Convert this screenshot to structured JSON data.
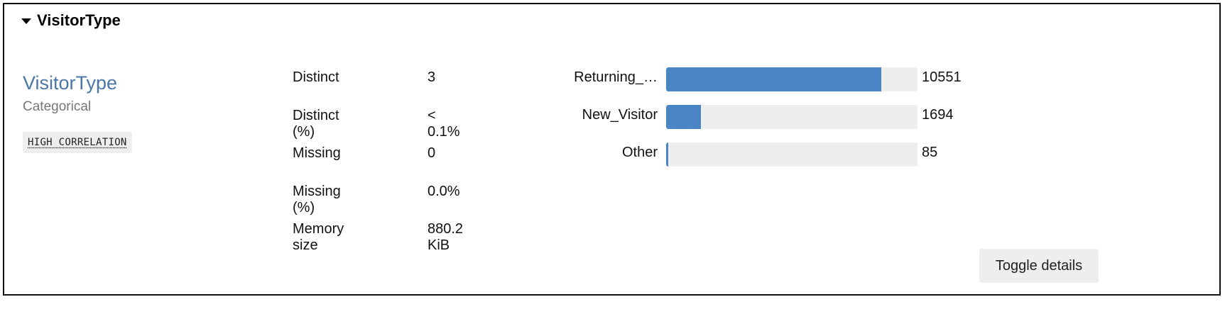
{
  "header": {
    "title": "VisitorType"
  },
  "variable": {
    "name": "VisitorType",
    "type": "Categorical",
    "badge": "HIGH CORRELATION"
  },
  "stats": [
    {
      "label": "Distinct",
      "value": "3"
    },
    {
      "label": "Distinct (%)",
      "value": "< 0.1%"
    },
    {
      "label": "Missing",
      "value": "0"
    },
    {
      "label": "Missing (%)",
      "value": "0.0%"
    },
    {
      "label": "Memory size",
      "value": "880.2 KiB"
    }
  ],
  "frequencies": [
    {
      "label": "Returning_…",
      "count": "10551"
    },
    {
      "label": "New_Visitor",
      "count": "1694"
    },
    {
      "label": "Other",
      "count": "85"
    }
  ],
  "chart_data": {
    "type": "bar",
    "categories": [
      "Returning_…",
      "New_Visitor",
      "Other"
    ],
    "values": [
      10551,
      1694,
      85
    ],
    "max": 12330
  },
  "toggle_button": "Toggle details",
  "colors": {
    "accent": "#4a76a8",
    "bar_fill": "#4a86c5",
    "bar_track": "#eeeeee"
  }
}
